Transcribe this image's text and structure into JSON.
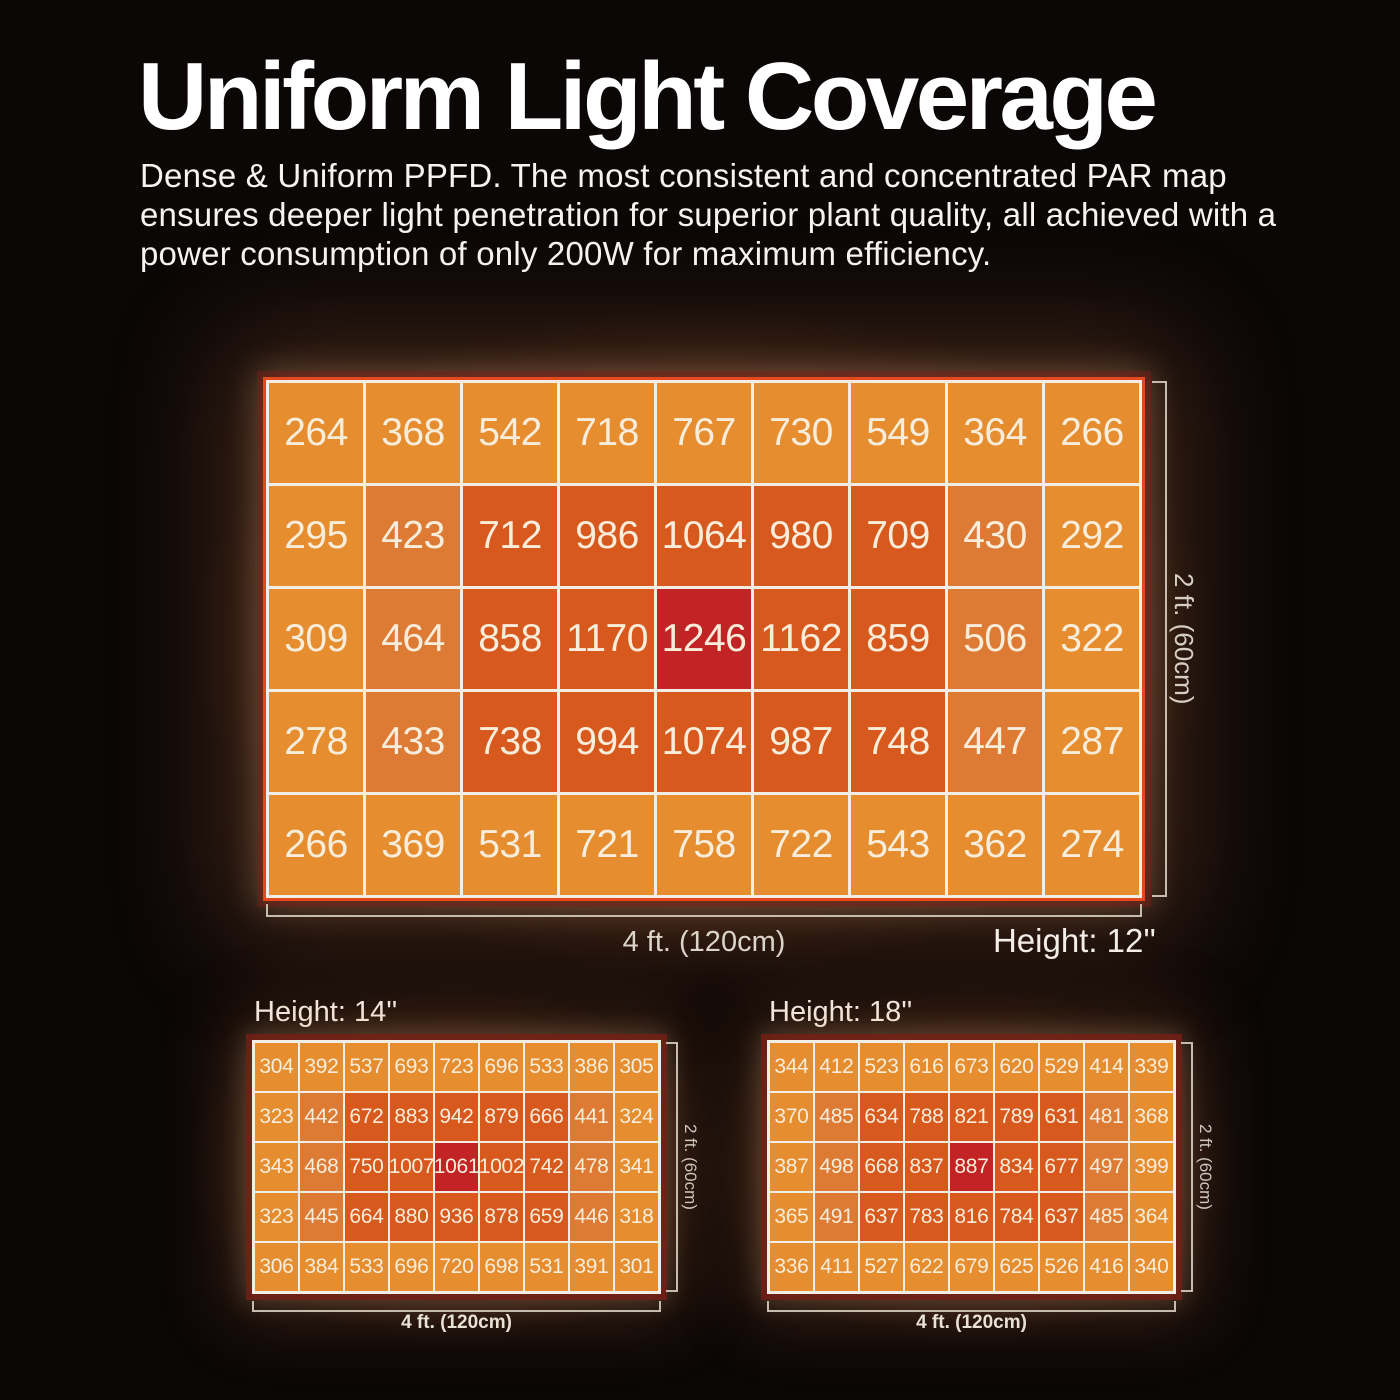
{
  "title": "Uniform Light Coverage",
  "description": "Dense & Uniform PPFD. The most consistent and concentrated PAR map ensures deeper light penetration for superior plant quality, all achieved with a power consumption of only 200W for maximum efficiency.",
  "colors": {
    "background": "#0B0707",
    "grid_line_white": "#F2EEE6",
    "main_outer_border": "#E6481E",
    "cell_text": "#F8EDDB",
    "bracket": "#C6BCAE"
  },
  "shade_colors": {
    "L": "#E58D2F",
    "M": "#DD7B35",
    "D": "#D8591E",
    "R": "#C22425"
  },
  "chart_data": [
    {
      "type": "heatmap",
      "height_label": "Height: 12''",
      "xlabel": "4 ft. (120cm)",
      "ylabel": "2 ft. (60cm)",
      "rows": 5,
      "cols": 9,
      "unit": "PPFD",
      "values": [
        [
          264,
          368,
          542,
          718,
          767,
          730,
          549,
          364,
          266
        ],
        [
          295,
          423,
          712,
          986,
          1064,
          980,
          709,
          430,
          292
        ],
        [
          309,
          464,
          858,
          1170,
          1246,
          1162,
          859,
          506,
          322
        ],
        [
          278,
          433,
          738,
          994,
          1074,
          987,
          748,
          447,
          287
        ],
        [
          266,
          369,
          531,
          721,
          758,
          722,
          543,
          362,
          274
        ]
      ],
      "shades": [
        "LLLLLLLLL",
        "LMDDDDDML",
        "LMDDRDDML",
        "LMDDDDDML",
        "LLLLLLLLL"
      ]
    },
    {
      "type": "heatmap",
      "height_label": "Height: 14''",
      "xlabel": "4 ft. (120cm)",
      "ylabel": "2 ft. (60cm)",
      "rows": 5,
      "cols": 9,
      "unit": "PPFD",
      "values": [
        [
          304,
          392,
          537,
          693,
          723,
          696,
          533,
          386,
          305
        ],
        [
          323,
          442,
          672,
          883,
          942,
          879,
          666,
          441,
          324
        ],
        [
          343,
          468,
          750,
          1007,
          1061,
          1002,
          742,
          478,
          341
        ],
        [
          323,
          445,
          664,
          880,
          936,
          878,
          659,
          446,
          318
        ],
        [
          306,
          384,
          533,
          696,
          720,
          698,
          531,
          391,
          301
        ]
      ],
      "shades": [
        "LLLLLLLLL",
        "LMDDDDDML",
        "LMDDRDDML",
        "LMDDDDDML",
        "LLLLLLLLL"
      ]
    },
    {
      "type": "heatmap",
      "height_label": "Height: 18''",
      "xlabel": "4 ft. (120cm)",
      "ylabel": "2 ft. (60cm)",
      "rows": 5,
      "cols": 9,
      "unit": "PPFD",
      "values": [
        [
          344,
          412,
          523,
          616,
          673,
          620,
          529,
          414,
          339
        ],
        [
          370,
          485,
          634,
          788,
          821,
          789,
          631,
          481,
          368
        ],
        [
          387,
          498,
          668,
          837,
          887,
          834,
          677,
          497,
          399
        ],
        [
          365,
          491,
          637,
          783,
          816,
          784,
          637,
          485,
          364
        ],
        [
          336,
          411,
          527,
          622,
          679,
          625,
          526,
          416,
          340
        ]
      ],
      "shades": [
        "LLLLLLLLL",
        "LMDDDDDML",
        "LMDDRDDML",
        "LMDDDDDML",
        "LLLLLLLLL"
      ]
    }
  ]
}
